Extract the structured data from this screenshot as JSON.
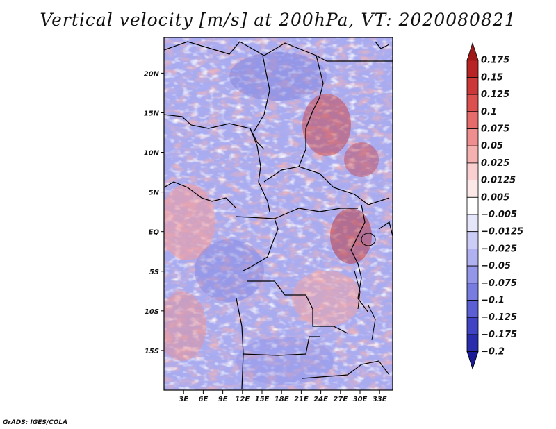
{
  "title": "Vertical velocity [m/s] at 200hPa, VT: 2020080821",
  "credit": "GrADS: IGES/COLA",
  "map": {
    "lat_labels": [
      "20N",
      "15N",
      "10N",
      "5N",
      "EQ",
      "5S",
      "10S",
      "15S"
    ],
    "lat_values": [
      20,
      15,
      10,
      5,
      0,
      -5,
      -10,
      -15
    ],
    "lon_labels": [
      "3E",
      "6E",
      "9E",
      "12E",
      "15E",
      "18E",
      "21E",
      "24E",
      "27E",
      "30E",
      "33E"
    ],
    "lon_values": [
      3,
      6,
      9,
      12,
      15,
      18,
      21,
      24,
      27,
      30,
      33
    ],
    "lat_range": [
      -20,
      24.5
    ],
    "lon_range": [
      0,
      35
    ],
    "field": "Vertical velocity",
    "units": "m/s",
    "level": "200hPa",
    "valid_time": "2020080821"
  },
  "colorbar": {
    "labels": [
      "0.175",
      "0.15",
      "0.125",
      "0.1",
      "0.075",
      "0.05",
      "0.025",
      "0.0125",
      "0.005",
      "−0.005",
      "−0.0125",
      "−0.025",
      "−0.05",
      "−0.075",
      "−0.1",
      "−0.125",
      "−0.175",
      "−0.2"
    ],
    "colors": [
      "#a01818",
      "#b82424",
      "#cc3838",
      "#dc5050",
      "#e66c6c",
      "#ee8e8e",
      "#f5b0b0",
      "#f9cfcf",
      "#fde8e8",
      "#ffffff",
      "#e6e6fb",
      "#cccdf6",
      "#b0b1f0",
      "#9496e8",
      "#787be0",
      "#5c5fd4",
      "#4043c4",
      "#2a2cae",
      "#1a1a96"
    ]
  }
}
